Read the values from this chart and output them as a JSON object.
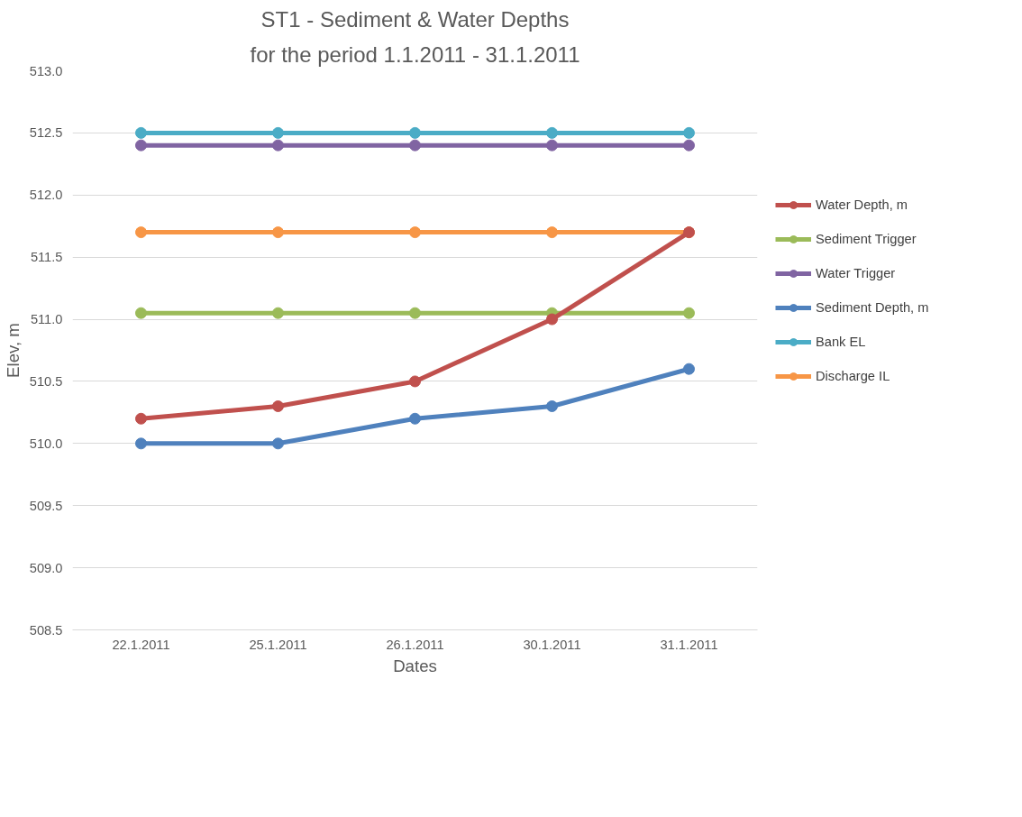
{
  "chart_data": {
    "type": "line",
    "title": "ST1 - Sediment & Water Depths",
    "subtitle": "for the period 1.1.2011 - 31.1.2011",
    "xlabel": "Dates",
    "ylabel": "Elev, m",
    "categories": [
      "22.1.2011",
      "25.1.2011",
      "26.1.2011",
      "30.1.2011",
      "31.1.2011"
    ],
    "series": [
      {
        "name": "Water Depth, m",
        "color": "#c0504d",
        "values": [
          510.2,
          510.3,
          510.5,
          511.0,
          511.7
        ]
      },
      {
        "name": "Sediment Trigger",
        "color": "#9bbb59",
        "values": [
          511.05,
          511.05,
          511.05,
          511.05,
          511.05
        ]
      },
      {
        "name": "Water Trigger",
        "color": "#8064a2",
        "values": [
          512.4,
          512.4,
          512.4,
          512.4,
          512.4
        ]
      },
      {
        "name": "Sediment Depth, m",
        "color": "#4f81bd",
        "values": [
          510.0,
          510.0,
          510.2,
          510.3,
          510.6
        ]
      },
      {
        "name": "Bank EL",
        "color": "#4bacc6",
        "values": [
          512.5,
          512.5,
          512.5,
          512.5,
          512.5
        ]
      },
      {
        "name": "Discharge IL",
        "color": "#f79646",
        "values": [
          511.7,
          511.7,
          511.7,
          511.7,
          511.7
        ]
      }
    ],
    "ylim": [
      508.5,
      513.0
    ],
    "yticks": [
      {
        "value": 508.5,
        "label": "508.5"
      },
      {
        "value": 509.0,
        "label": "509.0"
      },
      {
        "value": 509.5,
        "label": "509.5"
      },
      {
        "value": 510.0,
        "label": "510.0"
      },
      {
        "value": 510.5,
        "label": "510.5"
      },
      {
        "value": 511.0,
        "label": "511.0"
      },
      {
        "value": 511.5,
        "label": "511.5"
      },
      {
        "value": 512.0,
        "label": "512.0"
      },
      {
        "value": 512.5,
        "label": "512.5"
      },
      {
        "value": 513.0,
        "label": "513.0"
      }
    ],
    "grid": "y",
    "legend": "right",
    "marker": "circle",
    "line_style": "solid"
  }
}
